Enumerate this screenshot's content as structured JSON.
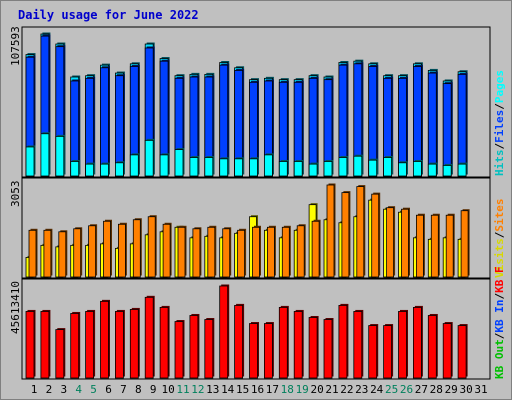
{
  "title": "Daily usage for June 2022",
  "colors": {
    "hits": "#00e0ff",
    "files": "#0040ff",
    "pages": "#00ffff",
    "visits": "#ffff00",
    "sites": "#ff8000",
    "kbytes": "#ff0000",
    "kb_in": "#0040ff",
    "kb_out": "#00c000",
    "weekday": "#000000",
    "weekend": "#00805c",
    "background": "#c0c0c0"
  },
  "legends": {
    "top": [
      {
        "text": "Hits",
        "color": "#00c0c0"
      },
      {
        "text": "/",
        "color": "#000000"
      },
      {
        "text": "Files",
        "color": "#0040ff"
      },
      {
        "text": "/",
        "color": "#000000"
      },
      {
        "text": "Pages",
        "color": "#00ffff"
      }
    ],
    "middle": [
      {
        "text": "Visits",
        "color": "#d8d800"
      },
      {
        "text": "/",
        "color": "#000000"
      },
      {
        "text": "Sites",
        "color": "#ff8000"
      }
    ],
    "bottom": [
      {
        "text": "KB Out",
        "color": "#00c000"
      },
      {
        "text": "/",
        "color": "#000000"
      },
      {
        "text": "KB In",
        "color": "#0040ff"
      },
      {
        "text": "/",
        "color": "#000000"
      },
      {
        "text": "KB F",
        "color": "#ff0000"
      }
    ]
  },
  "chart_data": {
    "type": "bar",
    "title": "Daily usage for June 2022",
    "days": [
      "1",
      "2",
      "3",
      "4",
      "5",
      "6",
      "7",
      "8",
      "9",
      "10",
      "11",
      "12",
      "13",
      "14",
      "15",
      "16",
      "17",
      "18",
      "19",
      "20",
      "21",
      "22",
      "23",
      "24",
      "25",
      "26",
      "27",
      "28",
      "29",
      "30",
      "31"
    ],
    "weekend_days": [
      "4",
      "5",
      "11",
      "12",
      "18",
      "19",
      "25",
      "26"
    ],
    "panels": [
      {
        "name": "hits-files-pages",
        "ymax_label": "107593",
        "ylim": [
          0,
          107593
        ],
        "series": [
          {
            "name": "Hits",
            "values": [
              92000,
              107593,
              100000,
              75000,
              76000,
              84000,
              78000,
              85000,
              100000,
              89000,
              76000,
              77000,
              77000,
              86000,
              82000,
              73000,
              74000,
              73000,
              73000,
              76000,
              75000,
              86000,
              87000,
              85000,
              76000,
              76000,
              85000,
              80000,
              72000,
              79000,
              0
            ]
          },
          {
            "name": "Files",
            "values": [
              90000,
              106000,
              98000,
              72000,
              74000,
              82000,
              76000,
              83000,
              97000,
              87000,
              74000,
              75000,
              75000,
              84000,
              80000,
              71000,
              72000,
              71000,
              71000,
              74000,
              73000,
              84000,
              85000,
              83000,
              74000,
              74000,
              83000,
              78000,
              70000,
              77000,
              0
            ]
          },
          {
            "name": "Pages",
            "values": [
              22000,
              32000,
              30000,
              11000,
              9000,
              9000,
              10000,
              16000,
              27000,
              16000,
              20000,
              14000,
              14000,
              13000,
              13000,
              13000,
              16000,
              11000,
              11000,
              9000,
              11000,
              14000,
              15000,
              12000,
              14000,
              10000,
              11000,
              9000,
              8000,
              9000,
              0
            ]
          }
        ]
      },
      {
        "name": "visits-sites",
        "ymax_label": "3053",
        "ylim": [
          0,
          3053
        ],
        "series": [
          {
            "name": "Visits",
            "values": [
              650,
              1050,
              1000,
              1050,
              1050,
              1100,
              950,
              1100,
              1400,
              1500,
              1650,
              1300,
              1350,
              1300,
              1450,
              2000,
              1550,
              1300,
              1550,
              2400,
              1900,
              1800,
              2000,
              2550,
              2250,
              2150,
              1300,
              1250,
              1300,
              1250,
              0
            ]
          },
          {
            "name": "Sites",
            "values": [
              1550,
              1550,
              1500,
              1600,
              1700,
              1850,
              1750,
              1900,
              2000,
              1750,
              1650,
              1600,
              1650,
              1600,
              1550,
              1650,
              1650,
              1650,
              1700,
              1850,
              3053,
              2800,
              3000,
              2750,
              2300,
              2250,
              2050,
              2050,
              2050,
              2200,
              0
            ]
          }
        ]
      },
      {
        "name": "kbytes",
        "ymax_label": "45613410",
        "ylim": [
          0,
          45613410
        ],
        "series": [
          {
            "name": "KBytes",
            "values": [
              33000000,
              33000000,
              24000000,
              32000000,
              33000000,
              38000000,
              33000000,
              34000000,
              40000000,
              35000000,
              28000000,
              31000000,
              29000000,
              45613410,
              36000000,
              27000000,
              27000000,
              35000000,
              33000000,
              30000000,
              29000000,
              36000000,
              33000000,
              26000000,
              26000000,
              33000000,
              35000000,
              31000000,
              27000000,
              26000000,
              0
            ]
          }
        ]
      }
    ]
  }
}
